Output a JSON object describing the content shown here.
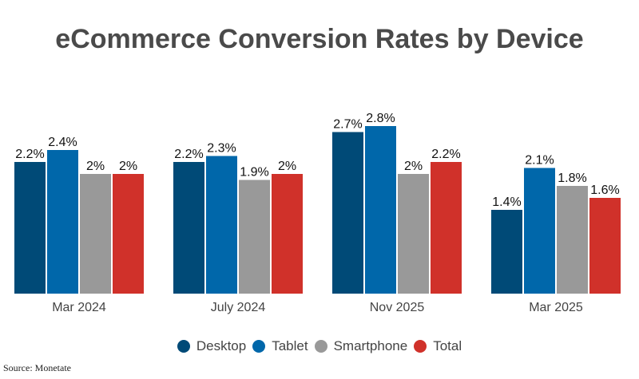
{
  "chart_data": {
    "type": "bar",
    "title": "eCommerce Conversion Rates by Device",
    "categories": [
      "Mar 2024",
      "July 2024",
      "Nov 2025",
      "Mar 2025"
    ],
    "series": [
      {
        "name": "Desktop",
        "color": "#004a77",
        "values": [
          2.2,
          2.2,
          2.7,
          1.4
        ],
        "labels": [
          "2.2%",
          "2.2%",
          "2.7%",
          "1.4%"
        ]
      },
      {
        "name": "Tablet",
        "color": "#0067aa",
        "values": [
          2.4,
          2.3,
          2.8,
          2.1
        ],
        "labels": [
          "2.4%",
          "2.3%",
          "2.8%",
          "2.1%"
        ]
      },
      {
        "name": "Smartphone",
        "color": "#999999",
        "values": [
          2.0,
          1.9,
          2.0,
          1.8
        ],
        "labels": [
          "2%",
          "1.9%",
          "2%",
          "1.8%"
        ]
      },
      {
        "name": "Total",
        "color": "#d0312a",
        "values": [
          2.0,
          2.0,
          2.2,
          1.6
        ],
        "labels": [
          "2%",
          "2%",
          "2.2%",
          "1.6%"
        ]
      }
    ],
    "xlabel": "",
    "ylabel": "",
    "ylim": [
      0,
      2.8
    ],
    "grid": false,
    "legend_position": "bottom-center",
    "source": "Source: Monetate"
  }
}
